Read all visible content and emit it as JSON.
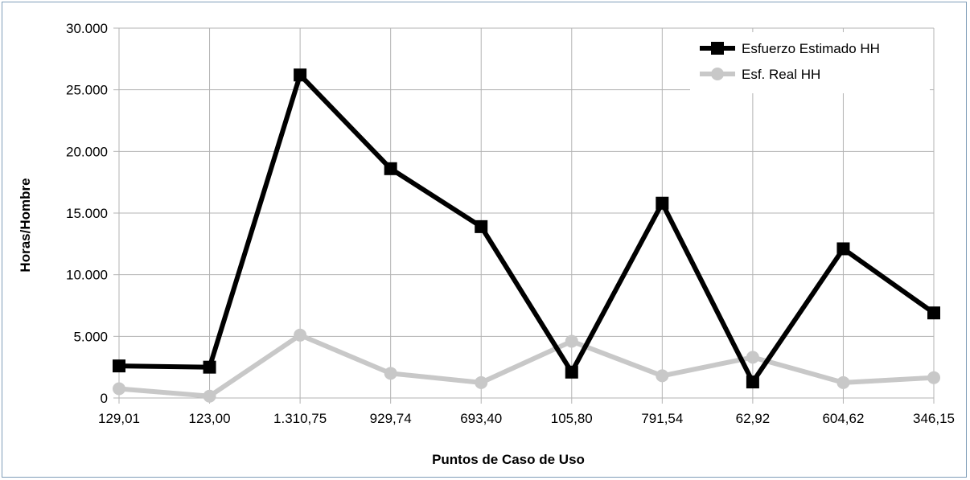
{
  "chart_data": {
    "type": "line",
    "categories": [
      "129,01",
      "123,00",
      "1.310,75",
      "929,74",
      "693,40",
      "105,80",
      "791,54",
      "62,92",
      "604,62",
      "346,15"
    ],
    "series": [
      {
        "name": "Esfuerzo Estimado HH",
        "color": "#000000",
        "marker": "square",
        "values": [
          2600,
          2500,
          26200,
          18600,
          13900,
          2100,
          15800,
          1300,
          12100,
          6900
        ]
      },
      {
        "name": "Esf. Real HH",
        "color": "#c8c8c8",
        "marker": "circle",
        "values": [
          750,
          150,
          5100,
          2000,
          1250,
          4600,
          1800,
          3300,
          1250,
          1650
        ]
      }
    ],
    "xlabel": "Puntos de Caso de Uso",
    "ylabel": "Horas/Hombre",
    "ylim": [
      0,
      30000
    ],
    "yticks": [
      0,
      5000,
      10000,
      15000,
      20000,
      25000,
      30000
    ],
    "ytick_labels": [
      "0",
      "5.000",
      "10.000",
      "15.000",
      "20.000",
      "25.000",
      "30.000"
    ],
    "grid": true,
    "legend_position": "top-right"
  }
}
